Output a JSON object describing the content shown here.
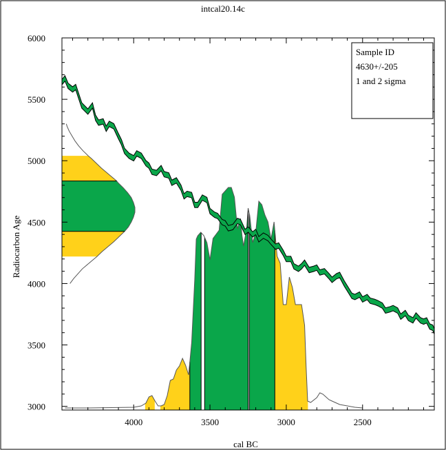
{
  "chart_data": {
    "type": "area",
    "title": "intcal20.14c",
    "xlabel": "cal BC",
    "ylabel": "Radiocarbon Age",
    "xlim": [
      4470,
      2030
    ],
    "ylim": [
      2970,
      6000
    ],
    "x_ticks": [
      "4000",
      "3500",
      "3000",
      "2500"
    ],
    "x_tick_values": [
      4000,
      3500,
      3000,
      2500
    ],
    "y_ticks": [
      "3000",
      "3500",
      "4000",
      "4500",
      "5000",
      "5500",
      "6000"
    ],
    "y_tick_values": [
      3000,
      3500,
      4000,
      4500,
      5000,
      5500,
      6000
    ],
    "legend": {
      "lines": [
        "Sample ID",
        "4630+/-205",
        "1 and 2 sigma"
      ],
      "position": "top-right"
    },
    "colors": {
      "one_sigma": "#0aa64a",
      "two_sigma": "#ffd11a",
      "curve": "#000000",
      "tail": "#555555"
    },
    "sample": {
      "age": 4630,
      "error": 205,
      "sigma1": [
        4425,
        4835
      ],
      "sigma2": [
        4220,
        5040
      ]
    },
    "calibration_curve": {
      "name": "intcal20",
      "x": [
        4470,
        4450,
        4430,
        4400,
        4380,
        4340,
        4300,
        4270,
        4250,
        4230,
        4200,
        4180,
        4160,
        4130,
        4100,
        4080,
        4060,
        4030,
        4000,
        3980,
        3950,
        3920,
        3900,
        3880,
        3850,
        3820,
        3800,
        3770,
        3750,
        3720,
        3690,
        3670,
        3650,
        3620,
        3600,
        3580,
        3550,
        3520,
        3500,
        3470,
        3450,
        3420,
        3400,
        3380,
        3350,
        3320,
        3300,
        3270,
        3250,
        3220,
        3200,
        3180,
        3150,
        3120,
        3100,
        3070,
        3050,
        3020,
        3000,
        2970,
        2950,
        2920,
        2900,
        2880,
        2850,
        2820,
        2800,
        2780,
        2750,
        2720,
        2700,
        2670,
        2650,
        2620,
        2600,
        2570,
        2550,
        2520,
        2500,
        2470,
        2450,
        2420,
        2400,
        2370,
        2350,
        2320,
        2300,
        2270,
        2250,
        2220,
        2200,
        2170,
        2150,
        2120,
        2100,
        2080,
        2060,
        2040,
        2030
      ],
      "y": [
        5640,
        5670,
        5610,
        5580,
        5600,
        5450,
        5400,
        5450,
        5350,
        5310,
        5320,
        5260,
        5300,
        5280,
        5200,
        5150,
        5080,
        5040,
        5020,
        5060,
        5040,
        4980,
        4960,
        4910,
        4900,
        4940,
        4890,
        4880,
        4820,
        4840,
        4780,
        4710,
        4730,
        4720,
        4640,
        4640,
        4700,
        4680,
        4590,
        4560,
        4550,
        4500,
        4490,
        4450,
        4460,
        4510,
        4500,
        4420,
        4440,
        4400,
        4420,
        4360,
        4390,
        4370,
        4340,
        4300,
        4310,
        4250,
        4200,
        4200,
        4140,
        4120,
        4140,
        4170,
        4110,
        4120,
        4130,
        4090,
        4100,
        4060,
        4030,
        4060,
        4070,
        4000,
        3960,
        3900,
        3890,
        3910,
        3870,
        3890,
        3860,
        3850,
        3840,
        3820,
        3780,
        3790,
        3800,
        3780,
        3730,
        3760,
        3720,
        3700,
        3740,
        3700,
        3690,
        3700,
        3650,
        3640,
        3610
      ]
    },
    "age_distribution": {
      "y": [
        4000,
        4040,
        4080,
        4120,
        4160,
        4200,
        4220,
        4260,
        4300,
        4340,
        4380,
        4420,
        4425,
        4460,
        4500,
        4540,
        4580,
        4620,
        4660,
        4700,
        4740,
        4780,
        4820,
        4835,
        4860,
        4900,
        4940,
        4980,
        5020,
        5040,
        5080,
        5120,
        5160,
        5200,
        5240,
        5280,
        5300
      ],
      "density": [
        0.11,
        0.16,
        0.22,
        0.28,
        0.36,
        0.44,
        0.48,
        0.55,
        0.63,
        0.71,
        0.78,
        0.85,
        0.86,
        0.91,
        0.95,
        0.98,
        1.0,
        1.0,
        0.98,
        0.95,
        0.9,
        0.84,
        0.77,
        0.75,
        0.7,
        0.62,
        0.54,
        0.47,
        0.4,
        0.36,
        0.29,
        0.23,
        0.18,
        0.14,
        0.1,
        0.07,
        0.06
      ]
    },
    "calibrated_distribution": {
      "x": [
        4450,
        4300,
        4150,
        4000,
        3950,
        3920,
        3900,
        3880,
        3860,
        3840,
        3820,
        3800,
        3780,
        3760,
        3740,
        3720,
        3700,
        3680,
        3660,
        3640,
        3620,
        3600,
        3590,
        3580,
        3560,
        3540,
        3520,
        3500,
        3480,
        3460,
        3440,
        3420,
        3400,
        3380,
        3360,
        3340,
        3320,
        3300,
        3290,
        3280,
        3260,
        3250,
        3240,
        3220,
        3200,
        3180,
        3160,
        3140,
        3120,
        3100,
        3080,
        3060,
        3040,
        3020,
        3000,
        2980,
        2960,
        2940,
        2920,
        2900,
        2880,
        2870,
        2860,
        2840,
        2800,
        2780,
        2760,
        2740,
        2720,
        2700,
        2680,
        2650,
        2600,
        2550,
        2500
      ],
      "height": [
        0,
        0,
        0.5,
        1,
        3,
        7,
        16,
        18,
        10,
        3,
        3,
        5,
        18,
        40,
        42,
        55,
        61,
        72,
        62,
        48,
        95,
        186,
        245,
        250,
        255,
        250,
        240,
        215,
        246,
        252,
        258,
        310,
        315,
        320,
        320,
        306,
        260,
        275,
        250,
        235,
        260,
        290,
        280,
        240,
        255,
        300,
        295,
        280,
        270,
        245,
        270,
        220,
        210,
        150,
        150,
        190,
        175,
        150,
        150,
        150,
        120,
        60,
        10,
        8,
        15,
        22,
        20,
        16,
        12,
        10,
        8,
        5,
        3,
        1,
        0
      ]
    },
    "sigma_ranges": {
      "one_sigma": [
        [
          3632,
          3558
        ],
        [
          3535,
          3250
        ],
        [
          3242,
          3075
        ]
      ],
      "two_sigma": [
        [
          3925,
          3862
        ],
        [
          3825,
          3632
        ],
        [
          3075,
          2858
        ]
      ]
    }
  }
}
